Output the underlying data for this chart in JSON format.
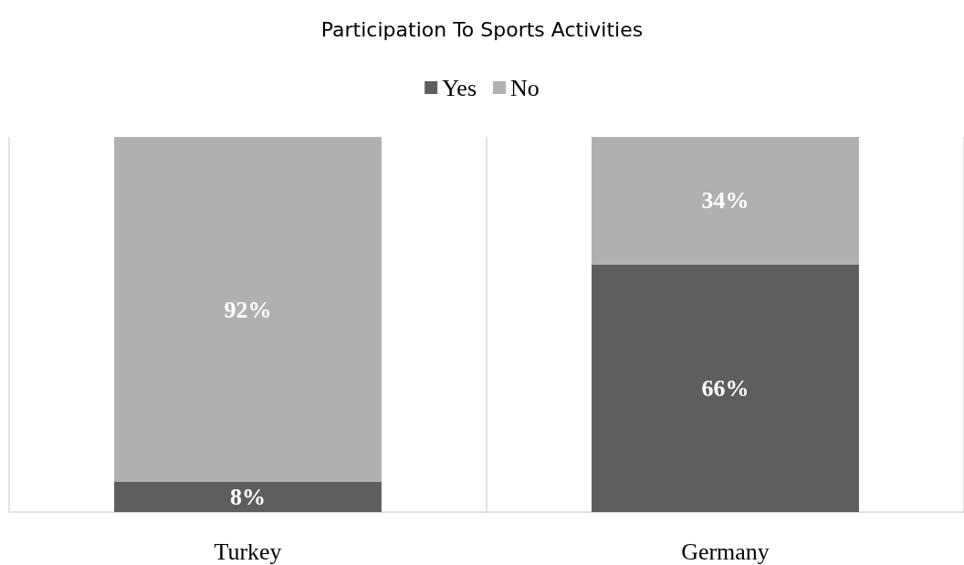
{
  "chart_data": {
    "type": "bar",
    "title": "Participation To Sports Activities",
    "categories": [
      "Turkey",
      "Germany"
    ],
    "stacked": true,
    "series": [
      {
        "name": "Yes",
        "color": "#5e5e5e",
        "values": [
          8,
          66
        ],
        "value_labels": [
          "8%",
          "66%"
        ]
      },
      {
        "name": "No",
        "color": "#b0b0b0",
        "values": [
          92,
          34
        ],
        "value_labels": [
          "92%",
          "34%"
        ]
      }
    ],
    "ylim": [
      0,
      100
    ],
    "tick_labels": "x",
    "grid": "x",
    "legend": "top"
  }
}
